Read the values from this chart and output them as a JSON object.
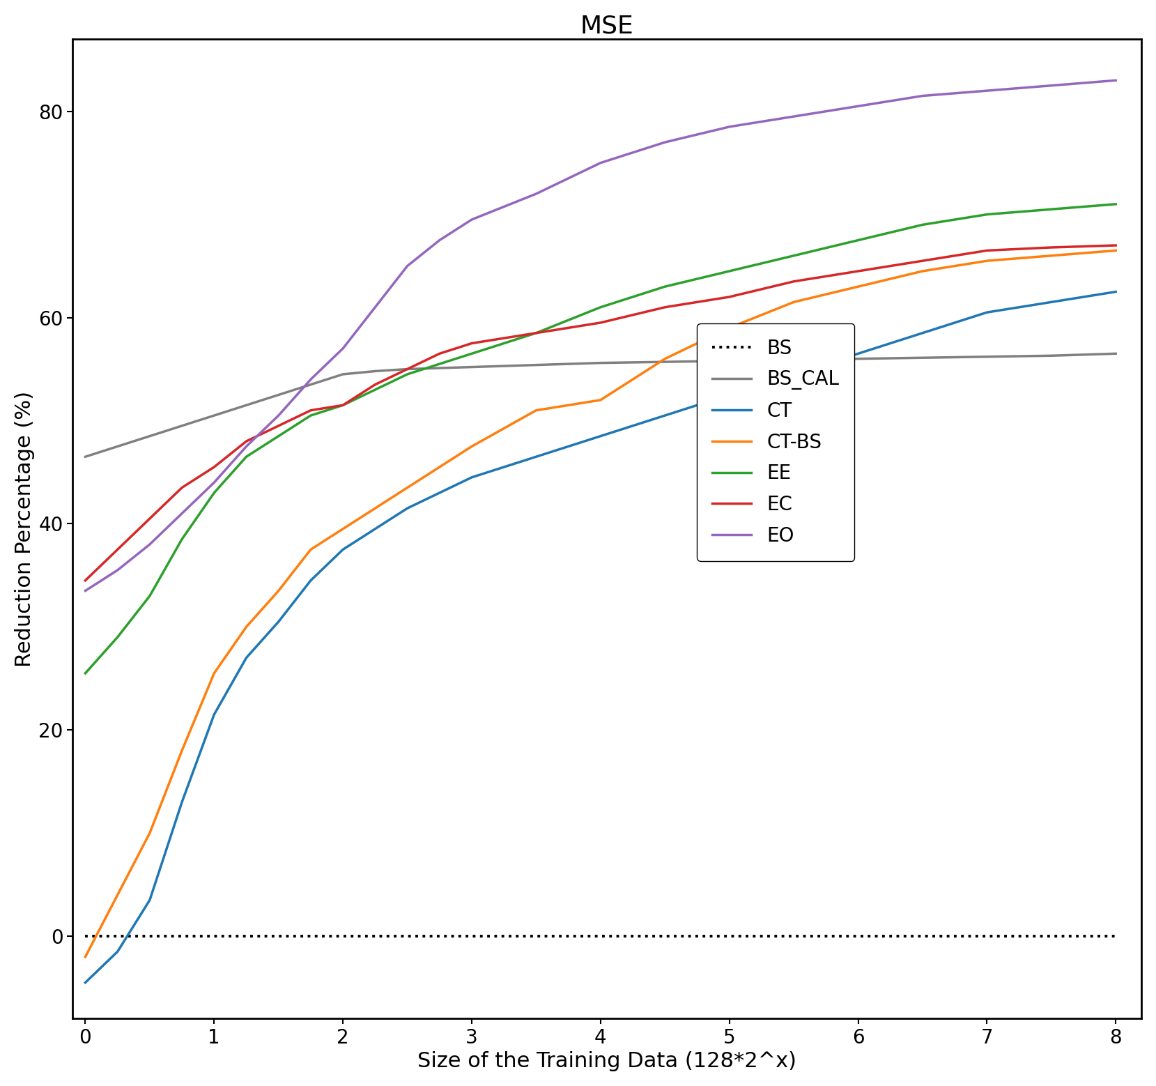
{
  "title": "MSE",
  "xlabel": "Size of the Training Data (128*2^x)",
  "ylabel": "Reduction Percentage (%)",
  "xlim": [
    -0.1,
    8.2
  ],
  "ylim": [
    -8,
    87
  ],
  "x": [
    0,
    0.25,
    0.5,
    0.75,
    1,
    1.25,
    1.5,
    1.75,
    2,
    2.25,
    2.5,
    2.75,
    3,
    3.5,
    4,
    4.5,
    5,
    5.5,
    6,
    6.5,
    7,
    7.5,
    8
  ],
  "series": {
    "BS": {
      "color": "black",
      "linestyle": "dotted",
      "linewidth": 2.8,
      "y": [
        0,
        0,
        0,
        0,
        0,
        0,
        0,
        0,
        0,
        0,
        0,
        0,
        0,
        0,
        0,
        0,
        0,
        0,
        0,
        0,
        0,
        0,
        0
      ]
    },
    "BS_CAL": {
      "color": "#808080",
      "linestyle": "solid",
      "linewidth": 2.5,
      "y": [
        46.5,
        47.5,
        48.5,
        49.5,
        50.5,
        51.5,
        52.5,
        53.5,
        54.5,
        54.8,
        55.0,
        55.1,
        55.2,
        55.4,
        55.6,
        55.7,
        55.8,
        55.9,
        56.0,
        56.1,
        56.2,
        56.3,
        56.5
      ]
    },
    "CT": {
      "color": "#1f77b4",
      "linestyle": "solid",
      "linewidth": 2.5,
      "y": [
        -4.5,
        -1.5,
        3.5,
        13.0,
        21.5,
        27.0,
        30.5,
        34.5,
        37.5,
        39.5,
        41.5,
        43.0,
        44.5,
        46.5,
        48.5,
        50.5,
        52.5,
        54.5,
        56.5,
        58.5,
        60.5,
        61.5,
        62.5
      ]
    },
    "CT-BS": {
      "color": "#ff7f0e",
      "linestyle": "solid",
      "linewidth": 2.5,
      "y": [
        -2.0,
        4.0,
        10.0,
        18.0,
        25.5,
        30.0,
        33.5,
        37.5,
        39.5,
        41.5,
        43.5,
        45.5,
        47.5,
        51.0,
        52.0,
        56.0,
        59.0,
        61.5,
        63.0,
        64.5,
        65.5,
        66.0,
        66.5
      ]
    },
    "EE": {
      "color": "#2ca02c",
      "linestyle": "solid",
      "linewidth": 2.5,
      "y": [
        25.5,
        29.0,
        33.0,
        38.5,
        43.0,
        46.5,
        48.5,
        50.5,
        51.5,
        53.0,
        54.5,
        55.5,
        56.5,
        58.5,
        61.0,
        63.0,
        64.5,
        66.0,
        67.5,
        69.0,
        70.0,
        70.5,
        71.0
      ]
    },
    "EC": {
      "color": "#d62728",
      "linestyle": "solid",
      "linewidth": 2.5,
      "y": [
        34.5,
        37.5,
        40.5,
        43.5,
        45.5,
        48.0,
        49.5,
        51.0,
        51.5,
        53.5,
        55.0,
        56.5,
        57.5,
        58.5,
        59.5,
        61.0,
        62.0,
        63.5,
        64.5,
        65.5,
        66.5,
        66.8,
        67.0
      ]
    },
    "EO": {
      "color": "#9467bd",
      "linestyle": "solid",
      "linewidth": 2.5,
      "y": [
        33.5,
        35.5,
        38.0,
        41.0,
        44.0,
        47.5,
        50.5,
        54.0,
        57.0,
        61.0,
        65.0,
        67.5,
        69.5,
        72.0,
        75.0,
        77.0,
        78.5,
        79.5,
        80.5,
        81.5,
        82.0,
        82.5,
        83.0
      ]
    }
  },
  "xticks": [
    0,
    1,
    2,
    3,
    4,
    5,
    6,
    7,
    8
  ],
  "yticks": [
    0,
    20,
    40,
    60,
    80
  ],
  "title_fontsize": 26,
  "label_fontsize": 22,
  "tick_fontsize": 20,
  "legend_fontsize": 20
}
